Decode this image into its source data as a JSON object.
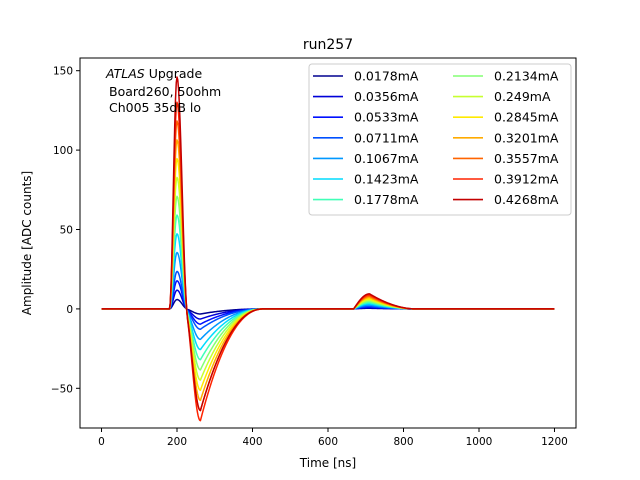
{
  "chart_data": {
    "type": "line",
    "title": "run257",
    "xlabel": "Time [ns]",
    "ylabel": "Amplitude [ADC counts]",
    "xlim": [
      -57,
      1257
    ],
    "ylim": [
      -75,
      158
    ],
    "xticks": [
      0,
      200,
      400,
      600,
      800,
      1000,
      1200
    ],
    "yticks": [
      -50,
      0,
      50,
      100,
      150
    ],
    "xtick_labels": [
      "0",
      "200",
      "400",
      "600",
      "800",
      "1000",
      "1200"
    ],
    "ytick_labels": [
      "−50",
      "0",
      "50",
      "100",
      "150"
    ],
    "grid": false,
    "legend_position": "top-right",
    "legend_columns": 2,
    "annotation": {
      "italic": "ATLAS",
      "line1_rest": " Upgrade",
      "line2": "Board260, 50ohm",
      "line3": "Ch005 35dB lo"
    },
    "pulse_shape": {
      "baseline": 0,
      "peak_time_ns": 200,
      "undershoot_time_ns": 262,
      "reflection_time_ns": 710,
      "x_range": [
        0,
        1200
      ]
    },
    "series": [
      {
        "name": "0.0178mA",
        "color": "#00008f",
        "peak": 5.9,
        "undershoot": -3.2,
        "reflection": 0.4
      },
      {
        "name": "0.0356mA",
        "color": "#0000d8",
        "peak": 11.8,
        "undershoot": -6.4,
        "reflection": 0.8
      },
      {
        "name": "0.0533mA",
        "color": "#0010ff",
        "peak": 17.7,
        "undershoot": -9.6,
        "reflection": 1.2
      },
      {
        "name": "0.0711mA",
        "color": "#0050ff",
        "peak": 23.6,
        "undershoot": -12.8,
        "reflection": 1.6
      },
      {
        "name": "0.1067mA",
        "color": "#0098ff",
        "peak": 35.5,
        "undershoot": -19.2,
        "reflection": 2.4
      },
      {
        "name": "0.1423mA",
        "color": "#00dcfe",
        "peak": 47.3,
        "undershoot": -25.6,
        "reflection": 3.2
      },
      {
        "name": "0.1778mA",
        "color": "#40ffb7",
        "peak": 59.1,
        "undershoot": -32.0,
        "reflection": 4.0
      },
      {
        "name": "0.2134mA",
        "color": "#83ff73",
        "peak": 70.9,
        "undershoot": -38.4,
        "reflection": 4.8
      },
      {
        "name": "0.249mA",
        "color": "#c7ff30",
        "peak": 82.8,
        "undershoot": -44.8,
        "reflection": 5.6
      },
      {
        "name": "0.2845mA",
        "color": "#ffea00",
        "peak": 94.6,
        "undershoot": -51.2,
        "reflection": 6.4
      },
      {
        "name": "0.3201mA",
        "color": "#ffab00",
        "peak": 106.4,
        "undershoot": -57.6,
        "reflection": 7.2
      },
      {
        "name": "0.3557mA",
        "color": "#ff6400",
        "peak": 118.3,
        "undershoot": -64.0,
        "reflection": 8.0
      },
      {
        "name": "0.3912mA",
        "color": "#ff2300",
        "peak": 130.1,
        "undershoot": -70.4,
        "reflection": 8.8
      },
      {
        "name": "0.4268mA",
        "color": "#c30000",
        "peak": 146.0,
        "undershoot": -64.0,
        "reflection": 9.5
      }
    ]
  }
}
